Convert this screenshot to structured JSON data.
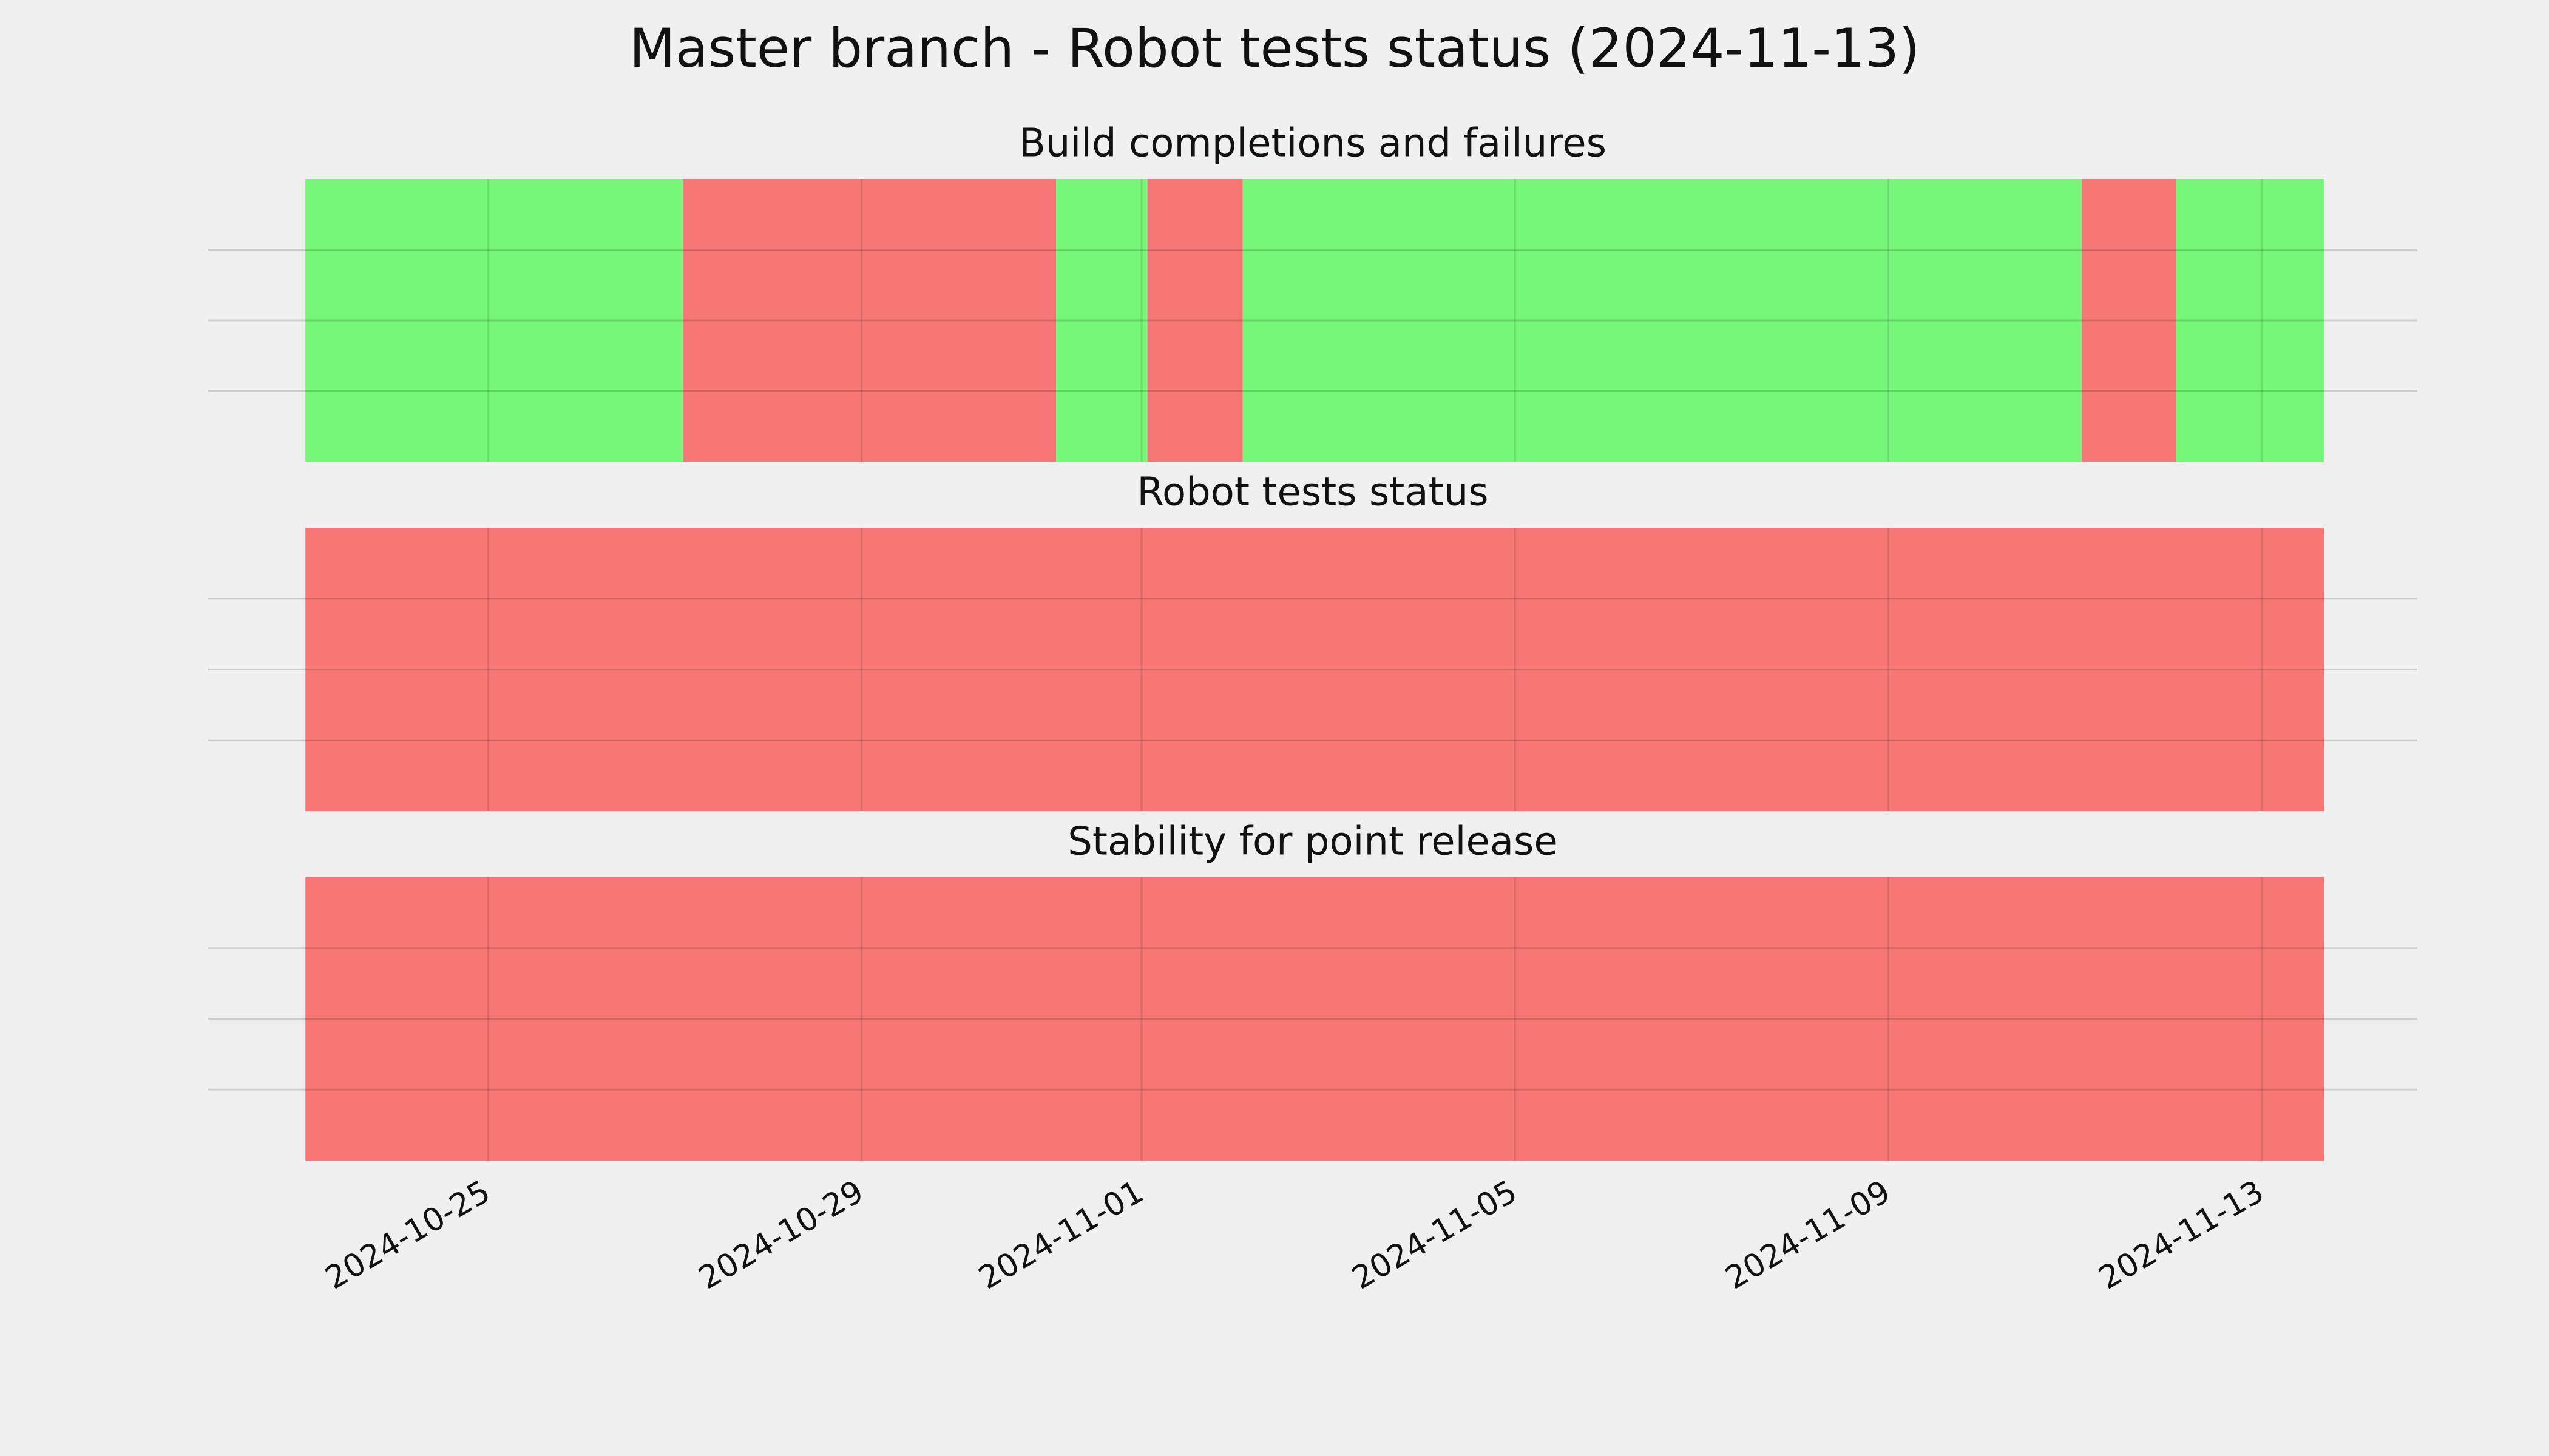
{
  "title": "Master branch - Robot tests status (2024-11-13)",
  "chart_data": [
    {
      "type": "timeline",
      "title": "Build completions and failures",
      "xlim": [
        "2024-10-22T00:00",
        "2024-11-14T16:00"
      ],
      "xticks": [
        "2024-10-25",
        "2024-10-29",
        "2024-11-01",
        "2024-11-05",
        "2024-11-09",
        "2024-11-13"
      ],
      "ylim": [
        0,
        1
      ],
      "yticks": [
        0.25,
        0.5,
        0.75
      ],
      "grid": true,
      "spans": [
        {
          "start": "2024-10-23T01:00",
          "end": "2024-10-27T02:00",
          "color": "#76f779"
        },
        {
          "start": "2024-10-27T02:00",
          "end": "2024-10-31T02:00",
          "color": "#f77676"
        },
        {
          "start": "2024-10-31T02:00",
          "end": "2024-11-01T01:30",
          "color": "#76f779"
        },
        {
          "start": "2024-11-01T01:30",
          "end": "2024-11-02T02:00",
          "color": "#f77676"
        },
        {
          "start": "2024-11-02T02:00",
          "end": "2024-11-11T01:45",
          "color": "#76f779"
        },
        {
          "start": "2024-11-11T01:45",
          "end": "2024-11-12T02:00",
          "color": "#f77676"
        },
        {
          "start": "2024-11-12T02:00",
          "end": "2024-11-13T16:00",
          "color": "#76f779"
        }
      ]
    },
    {
      "type": "timeline",
      "title": "Robot tests status",
      "xlim": [
        "2024-10-22T00:00",
        "2024-11-14T16:00"
      ],
      "xticks": [
        "2024-10-25",
        "2024-10-29",
        "2024-11-01",
        "2024-11-05",
        "2024-11-09",
        "2024-11-13"
      ],
      "ylim": [
        0,
        1
      ],
      "yticks": [
        0.25,
        0.5,
        0.75
      ],
      "grid": true,
      "spans": [
        {
          "start": "2024-10-23T01:00",
          "end": "2024-11-13T16:00",
          "color": "#f77676"
        }
      ]
    },
    {
      "type": "timeline",
      "title": "Stability for point release",
      "xlim": [
        "2024-10-22T00:00",
        "2024-11-14T16:00"
      ],
      "xticks": [
        "2024-10-25",
        "2024-10-29",
        "2024-11-01",
        "2024-11-05",
        "2024-11-09",
        "2024-11-13"
      ],
      "ylim": [
        0,
        1
      ],
      "yticks": [
        0.25,
        0.5,
        0.75
      ],
      "grid": true,
      "spans": [
        {
          "start": "2024-10-23T01:00",
          "end": "2024-11-13T16:00",
          "color": "#f77676"
        }
      ]
    }
  ]
}
